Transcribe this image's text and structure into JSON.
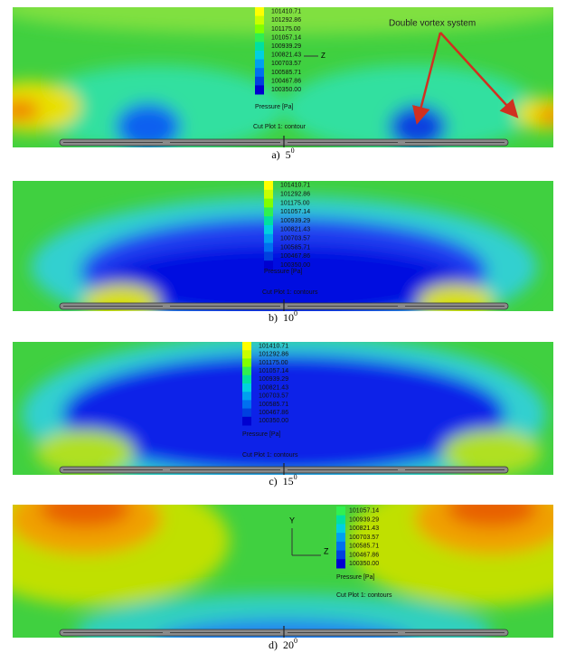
{
  "annotation": "Double vortex system",
  "axis_labels": {
    "y": "Y",
    "z": "Z"
  },
  "panels": [
    {
      "legend": [
        "101410.71",
        "101292.86",
        "101175.00",
        "101057.14",
        "100939.29",
        "100821.43",
        "100703.57",
        "100585.71",
        "100467.86",
        "100350.00"
      ],
      "pressure_label": "Pressure [Pa]",
      "cut_plot_label": "Cut Plot 1: contour",
      "caption": {
        "label": "a)",
        "angle": "5",
        "degree": "0"
      }
    },
    {
      "legend": [
        "101410.71",
        "101292.86",
        "101175.00",
        "101057.14",
        "100939.29",
        "100821.43",
        "100703.57",
        "100585.71",
        "100467.86",
        "100350.00"
      ],
      "pressure_label": "Pressure [Pa]",
      "cut_plot_label": "Cut Plot 1: contours",
      "caption": {
        "label": "b)",
        "angle": "10",
        "degree": "0"
      }
    },
    {
      "legend": [
        "101410.71",
        "101292.86",
        "101175.00",
        "101057.14",
        "100939.29",
        "100821.43",
        "100703.57",
        "100585.71",
        "100467.86",
        "100350.00"
      ],
      "pressure_label": "Pressure [Pa]",
      "cut_plot_label": "Cut Plot 1: contours",
      "caption": {
        "label": "c)",
        "angle": "15",
        "degree": "0"
      }
    },
    {
      "legend": [
        "101057.14",
        "100939.29",
        "100821.43",
        "100703.57",
        "100585.71",
        "100467.86",
        "100350.00"
      ],
      "pressure_label": "Pressure [Pa]",
      "cut_plot_label": "Cut Plot 1: contours",
      "caption": {
        "label": "d)",
        "angle": "20",
        "degree": "0"
      }
    }
  ]
}
